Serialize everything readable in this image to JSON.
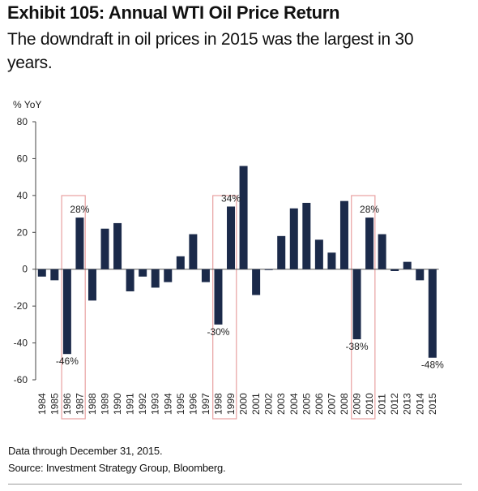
{
  "header": {
    "exhibit": "Exhibit 105: Annual WTI Oil Price Return",
    "subtitle": "The downdraft in oil prices in 2015 was the largest in 30 years."
  },
  "footer": {
    "note": "Data through December 31, 2015.",
    "source": "Source: Investment Strategy Group, Bloomberg."
  },
  "chart_data": {
    "type": "bar",
    "ylabel": "% YoY",
    "ylim": [
      -60,
      80
    ],
    "yticks": [
      80,
      60,
      40,
      20,
      0,
      -20,
      -40,
      -60
    ],
    "bar_color": "#1b2a4a",
    "highlight_color": "#e8a0a0",
    "categories": [
      "1984",
      "1985",
      "1986",
      "1987",
      "1988",
      "1989",
      "1990",
      "1991",
      "1992",
      "1993",
      "1994",
      "1995",
      "1996",
      "1997",
      "1998",
      "1999",
      "2000",
      "2001",
      "2002",
      "2003",
      "2004",
      "2005",
      "2006",
      "2007",
      "2008",
      "2009",
      "2010",
      "2011",
      "2012",
      "2013",
      "2014",
      "2015"
    ],
    "values": [
      -4,
      -6,
      -46,
      28,
      -17,
      22,
      25,
      -12,
      -4,
      -10,
      -7,
      7,
      19,
      -7,
      -30,
      34,
      56,
      -14,
      0,
      18,
      33,
      36,
      16,
      9,
      37,
      -38,
      28,
      19,
      -1,
      4,
      -6,
      -48
    ],
    "data_labels": [
      {
        "category": "1986",
        "text": "-46%"
      },
      {
        "category": "1987",
        "text": "28%"
      },
      {
        "category": "1998",
        "text": "-30%"
      },
      {
        "category": "1999",
        "text": "34%"
      },
      {
        "category": "2009",
        "text": "-38%"
      },
      {
        "category": "2010",
        "text": "28%"
      },
      {
        "category": "2015",
        "text": "-48%"
      }
    ],
    "highlights": [
      [
        "1986",
        "1987"
      ],
      [
        "1998",
        "1999"
      ],
      [
        "2009",
        "2010"
      ]
    ]
  }
}
